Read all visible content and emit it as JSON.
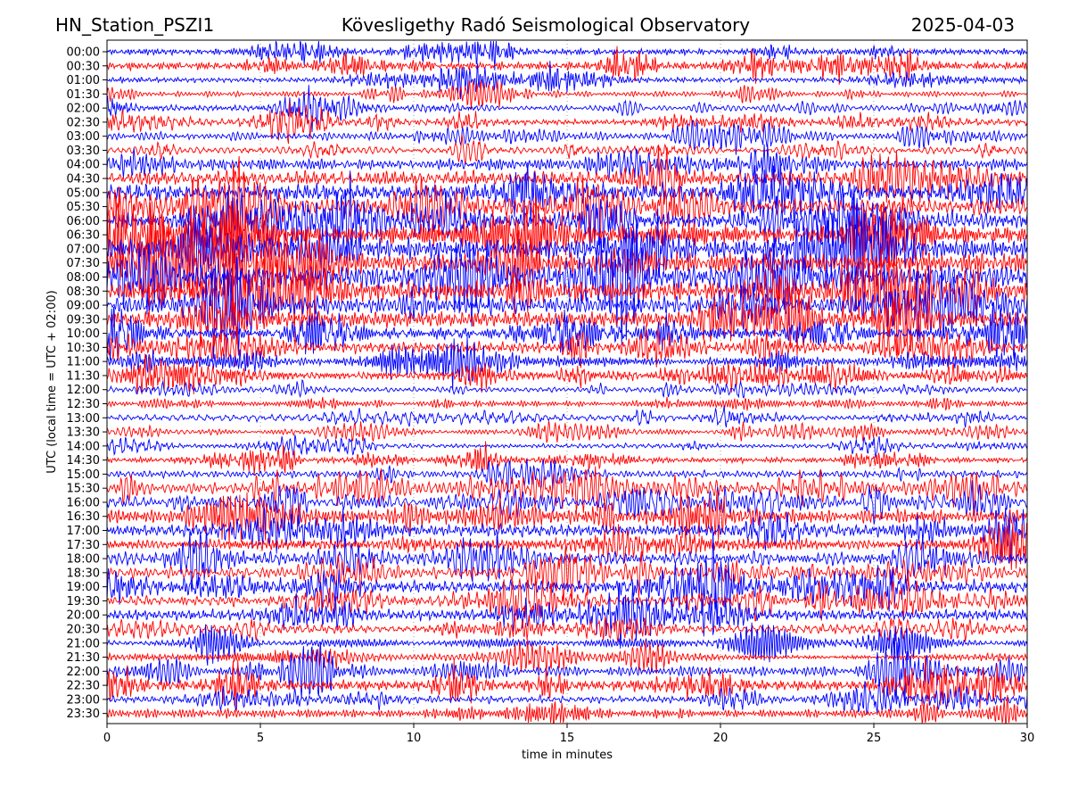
{
  "header": {
    "station": "HN_Station_PSZI1",
    "observatory": "Kövesligethy Radó Seismological Observatory",
    "date": "2025-04-03"
  },
  "colors": {
    "trace_a": "#0000ff",
    "trace_b": "#ff0000",
    "grid": "#888888",
    "axis": "#000000"
  },
  "chart_data": {
    "type": "line",
    "xlabel": "time in minutes",
    "ylabel": "UTC (local time = UTC + 02:00)",
    "xlim": [
      0,
      30
    ],
    "x_ticks": [
      "0",
      "5",
      "10",
      "15",
      "20",
      "25",
      "30"
    ],
    "x_tick_values": [
      0,
      5,
      10,
      15,
      20,
      25,
      30
    ],
    "vertical_grid": true,
    "grid_style": "dotted",
    "row_labels": [
      "00:00",
      "00:30",
      "01:00",
      "01:30",
      "02:00",
      "02:30",
      "03:00",
      "03:30",
      "04:00",
      "04:30",
      "05:00",
      "05:30",
      "06:00",
      "06:30",
      "07:00",
      "07:30",
      "08:00",
      "08:30",
      "09:00",
      "09:30",
      "10:00",
      "10:30",
      "11:00",
      "11:30",
      "12:00",
      "12:30",
      "13:00",
      "13:30",
      "14:00",
      "14:30",
      "15:00",
      "15:30",
      "16:00",
      "16:30",
      "17:00",
      "17:30",
      "18:00",
      "18:30",
      "19:00",
      "19:30",
      "20:00",
      "20:30",
      "21:00",
      "21:30",
      "22:00",
      "22:30",
      "23:00",
      "23:30"
    ],
    "row_color_cycle": [
      "trace_a",
      "trace_b"
    ],
    "row_activity": [
      0.55,
      0.65,
      0.5,
      0.6,
      0.5,
      0.6,
      0.7,
      0.8,
      1.3,
      1.4,
      1.5,
      1.6,
      1.7,
      1.7,
      1.8,
      1.8,
      1.9,
      1.8,
      1.7,
      1.5,
      1.1,
      0.9,
      0.8,
      0.7,
      0.7,
      0.6,
      0.6,
      0.5,
      0.55,
      0.6,
      0.7,
      0.9,
      1.1,
      1.2,
      1.2,
      1.2,
      1.1,
      1.1,
      1.1,
      1.0,
      0.95,
      0.95,
      0.9,
      0.9,
      0.9,
      0.85,
      0.8,
      0.7
    ]
  }
}
